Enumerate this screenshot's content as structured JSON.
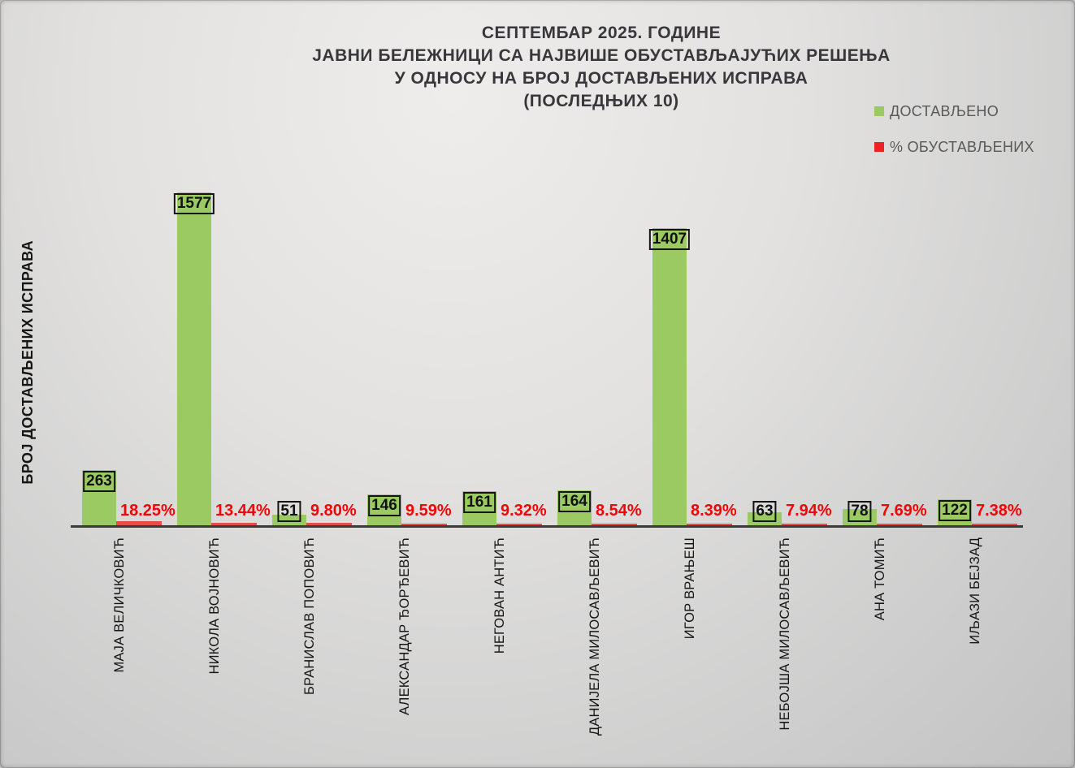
{
  "title": {
    "line1": "СЕПТЕМБАР 2025. ГОДИНЕ",
    "line2": "ЈАВНИ БЕЛЕЖНИЦИ СА НАЈВИШЕ ОБУСТАВЉАЈУЋИХ РЕШЕЊА",
    "line3": "У ОДНОСУ НА БРОЈ ДОСТАВЉЕНИХ ИСПРАВА",
    "line4": "(ПОСЛЕДЊИХ 10)"
  },
  "legend": {
    "delivered_label": "ДОСТАВЉЕНО",
    "suspended_label": "% ОБУСТАВЉЕНИХ"
  },
  "y_axis_label": "БРОЈ ДОСТАВЉЕНИХ ИСПРАВА",
  "colors": {
    "bar_green": "#9cca62",
    "bar_red": "#e74c4c",
    "pct_text_red": "#f20505",
    "legend_green": "#9cca62",
    "legend_red": "#ed2224",
    "axis_line": "#3a3a3a",
    "title_text": "#38383c"
  },
  "chart_data": {
    "type": "bar",
    "title": "СЕПТЕМБАР 2025. ГОДИНЕ — ЈАВНИ БЕЛЕЖНИЦИ СА НАЈВИШЕ ОБУСТАВЉАЈУЋИХ РЕШЕЊА У ОДНОСУ НА БРОЈ ДОСТАВЉЕНИХ ИСПРАВА (ПОСЛЕДЊИХ 10)",
    "xlabel": "",
    "ylabel": "БРОЈ ДОСТАВЉЕНИХ ИСПРАВА",
    "ylim": [
      0,
      1577
    ],
    "grid": false,
    "y_axis_ticks_visible": false,
    "legend_position": "top-right",
    "value_label_style": "boxed",
    "categories": [
      "МАЈА ВЕЛИЧКОВИЋ",
      "НИКОЛА ВОЈНОВИЋ",
      "БРАНИСЛАВ ПОПОВИЋ",
      "АЛЕКСАНДАР ЂОРЂЕВИЋ",
      "НЕГОВАН АНТИЋ",
      "ДАНИЈЕЛА МИЛОСАВЉЕВИЋ",
      "ИГОР ВРАЊЕШ",
      "НЕБОЈША МИЛОСАВЉЕВИЋ",
      "АНА ТОМИЋ",
      "ИЉАЗИ БЕЈЗАД"
    ],
    "series": [
      {
        "name": "ДОСТАВЉЕНО",
        "values": [
          263,
          1577,
          51,
          146,
          161,
          164,
          1407,
          63,
          78,
          122
        ]
      },
      {
        "name": "% ОБУСТАВЉЕНИХ",
        "values": [
          18.25,
          13.44,
          9.8,
          9.59,
          9.32,
          8.54,
          8.39,
          7.94,
          7.69,
          7.38
        ],
        "labels": [
          "18.25%",
          "13.44%",
          "9.80%",
          "9.59%",
          "9.32%",
          "8.54%",
          "8.39%",
          "7.94%",
          "7.69%",
          "7.38%"
        ]
      }
    ]
  }
}
